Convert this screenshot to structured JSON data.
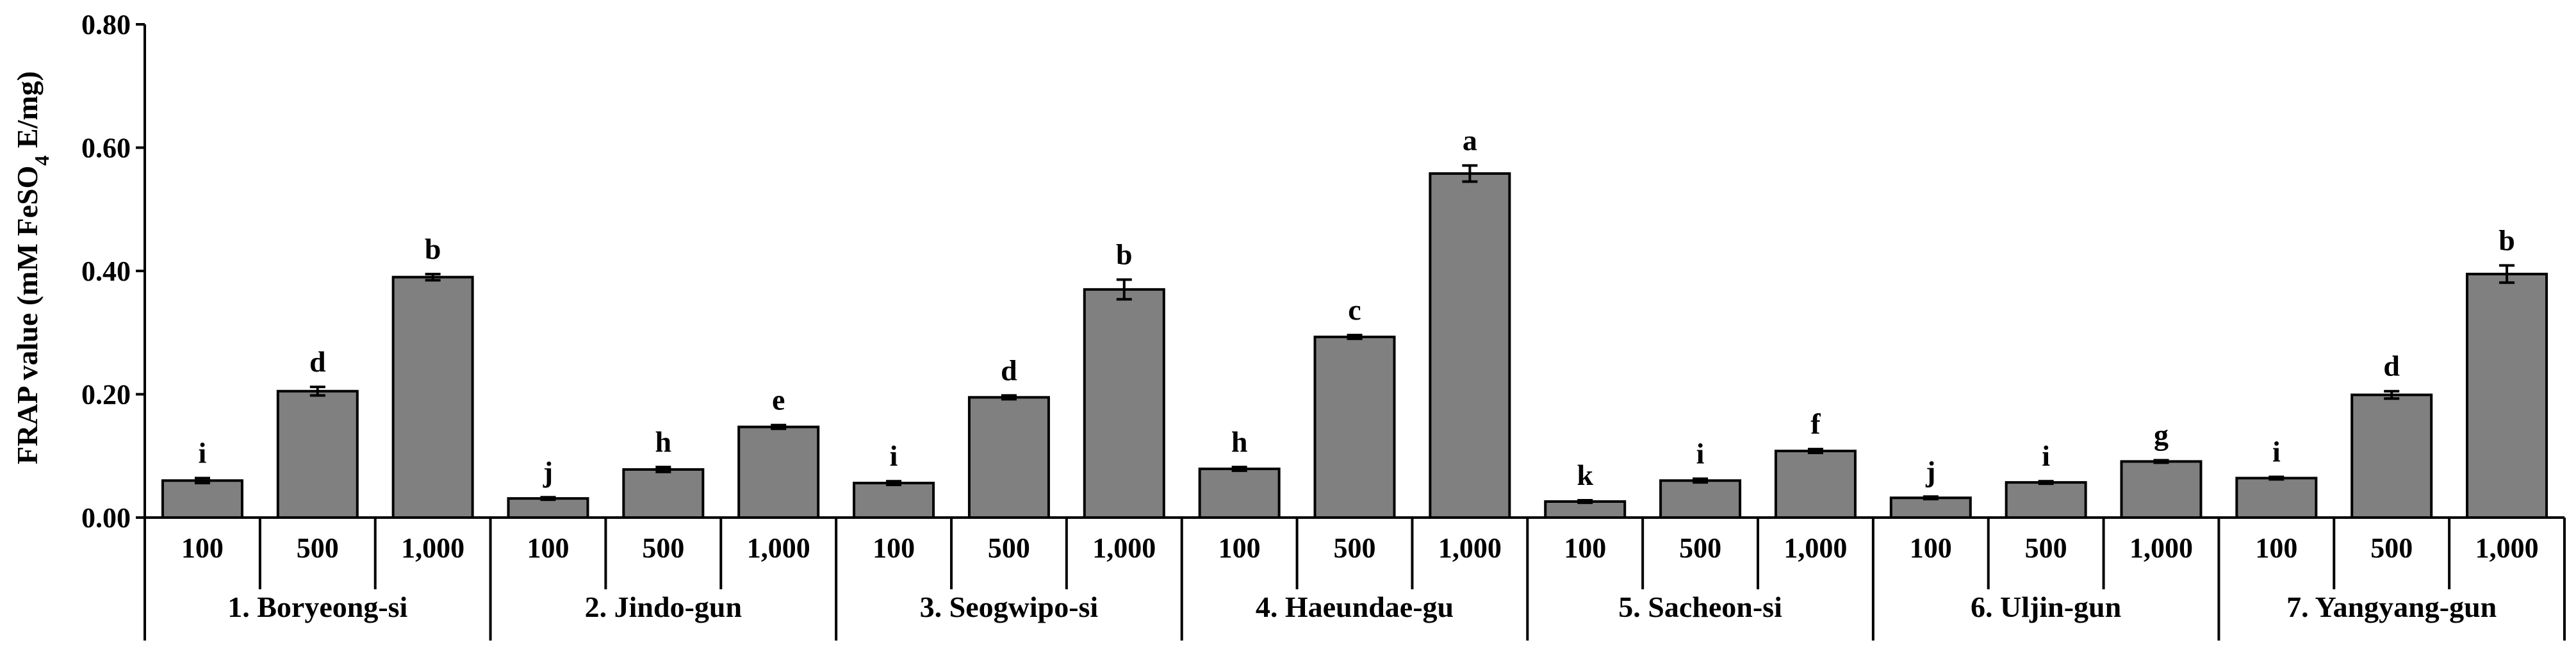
{
  "chart_data": {
    "type": "bar",
    "title": "",
    "xlabel": "",
    "ylabel": "FRAP value (mM FeSO",
    "ylabel_sub": "4",
    "ylabel_tail": " E/mg)",
    "ylim": [
      0,
      0.8
    ],
    "yticks": [
      0,
      0.2,
      0.4,
      0.6,
      0.8
    ],
    "ytick_labels": [
      "0.00",
      "0.20",
      "0.40",
      "0.60",
      "0.80"
    ],
    "bar_color": "#808080",
    "groups": [
      {
        "name": "1. Boryeong-si",
        "categories": [
          "100",
          "500",
          "1,000"
        ],
        "values": [
          0.06,
          0.205,
          0.39
        ],
        "errors": [
          0.004,
          0.007,
          0.005
        ],
        "letters": [
          "i",
          "d",
          "b"
        ]
      },
      {
        "name": "2. Jindo-gun",
        "categories": [
          "100",
          "500",
          "1,000"
        ],
        "values": [
          0.031,
          0.078,
          0.147
        ],
        "errors": [
          0.002,
          0.004,
          0.003
        ],
        "letters": [
          "j",
          "h",
          "e"
        ]
      },
      {
        "name": "3. Seogwipo-si",
        "categories": [
          "100",
          "500",
          "1,000"
        ],
        "values": [
          0.056,
          0.195,
          0.37
        ],
        "errors": [
          0.003,
          0.003,
          0.016
        ],
        "letters": [
          "i",
          "d",
          "b"
        ]
      },
      {
        "name": "4. Haeundae-gu",
        "categories": [
          "100",
          "500",
          "1,000"
        ],
        "values": [
          0.079,
          0.293,
          0.558
        ],
        "errors": [
          0.003,
          0.003,
          0.013
        ],
        "letters": [
          "h",
          "c",
          "a"
        ]
      },
      {
        "name": "5. Sacheon-si",
        "categories": [
          "100",
          "500",
          "1,000"
        ],
        "values": [
          0.026,
          0.06,
          0.108
        ],
        "errors": [
          0.002,
          0.003,
          0.003
        ],
        "letters": [
          "k",
          "i",
          "f"
        ]
      },
      {
        "name": "6. Uljin-gun",
        "categories": [
          "100",
          "500",
          "1,000"
        ],
        "values": [
          0.032,
          0.057,
          0.091
        ],
        "errors": [
          0.002,
          0.002,
          0.002
        ],
        "letters": [
          "j",
          "i",
          "g"
        ]
      },
      {
        "name": "7. Yangyang-gun",
        "categories": [
          "100",
          "500",
          "1,000"
        ],
        "values": [
          0.064,
          0.199,
          0.395
        ],
        "errors": [
          0.002,
          0.006,
          0.014
        ],
        "letters": [
          "i",
          "d",
          "b"
        ]
      }
    ]
  }
}
